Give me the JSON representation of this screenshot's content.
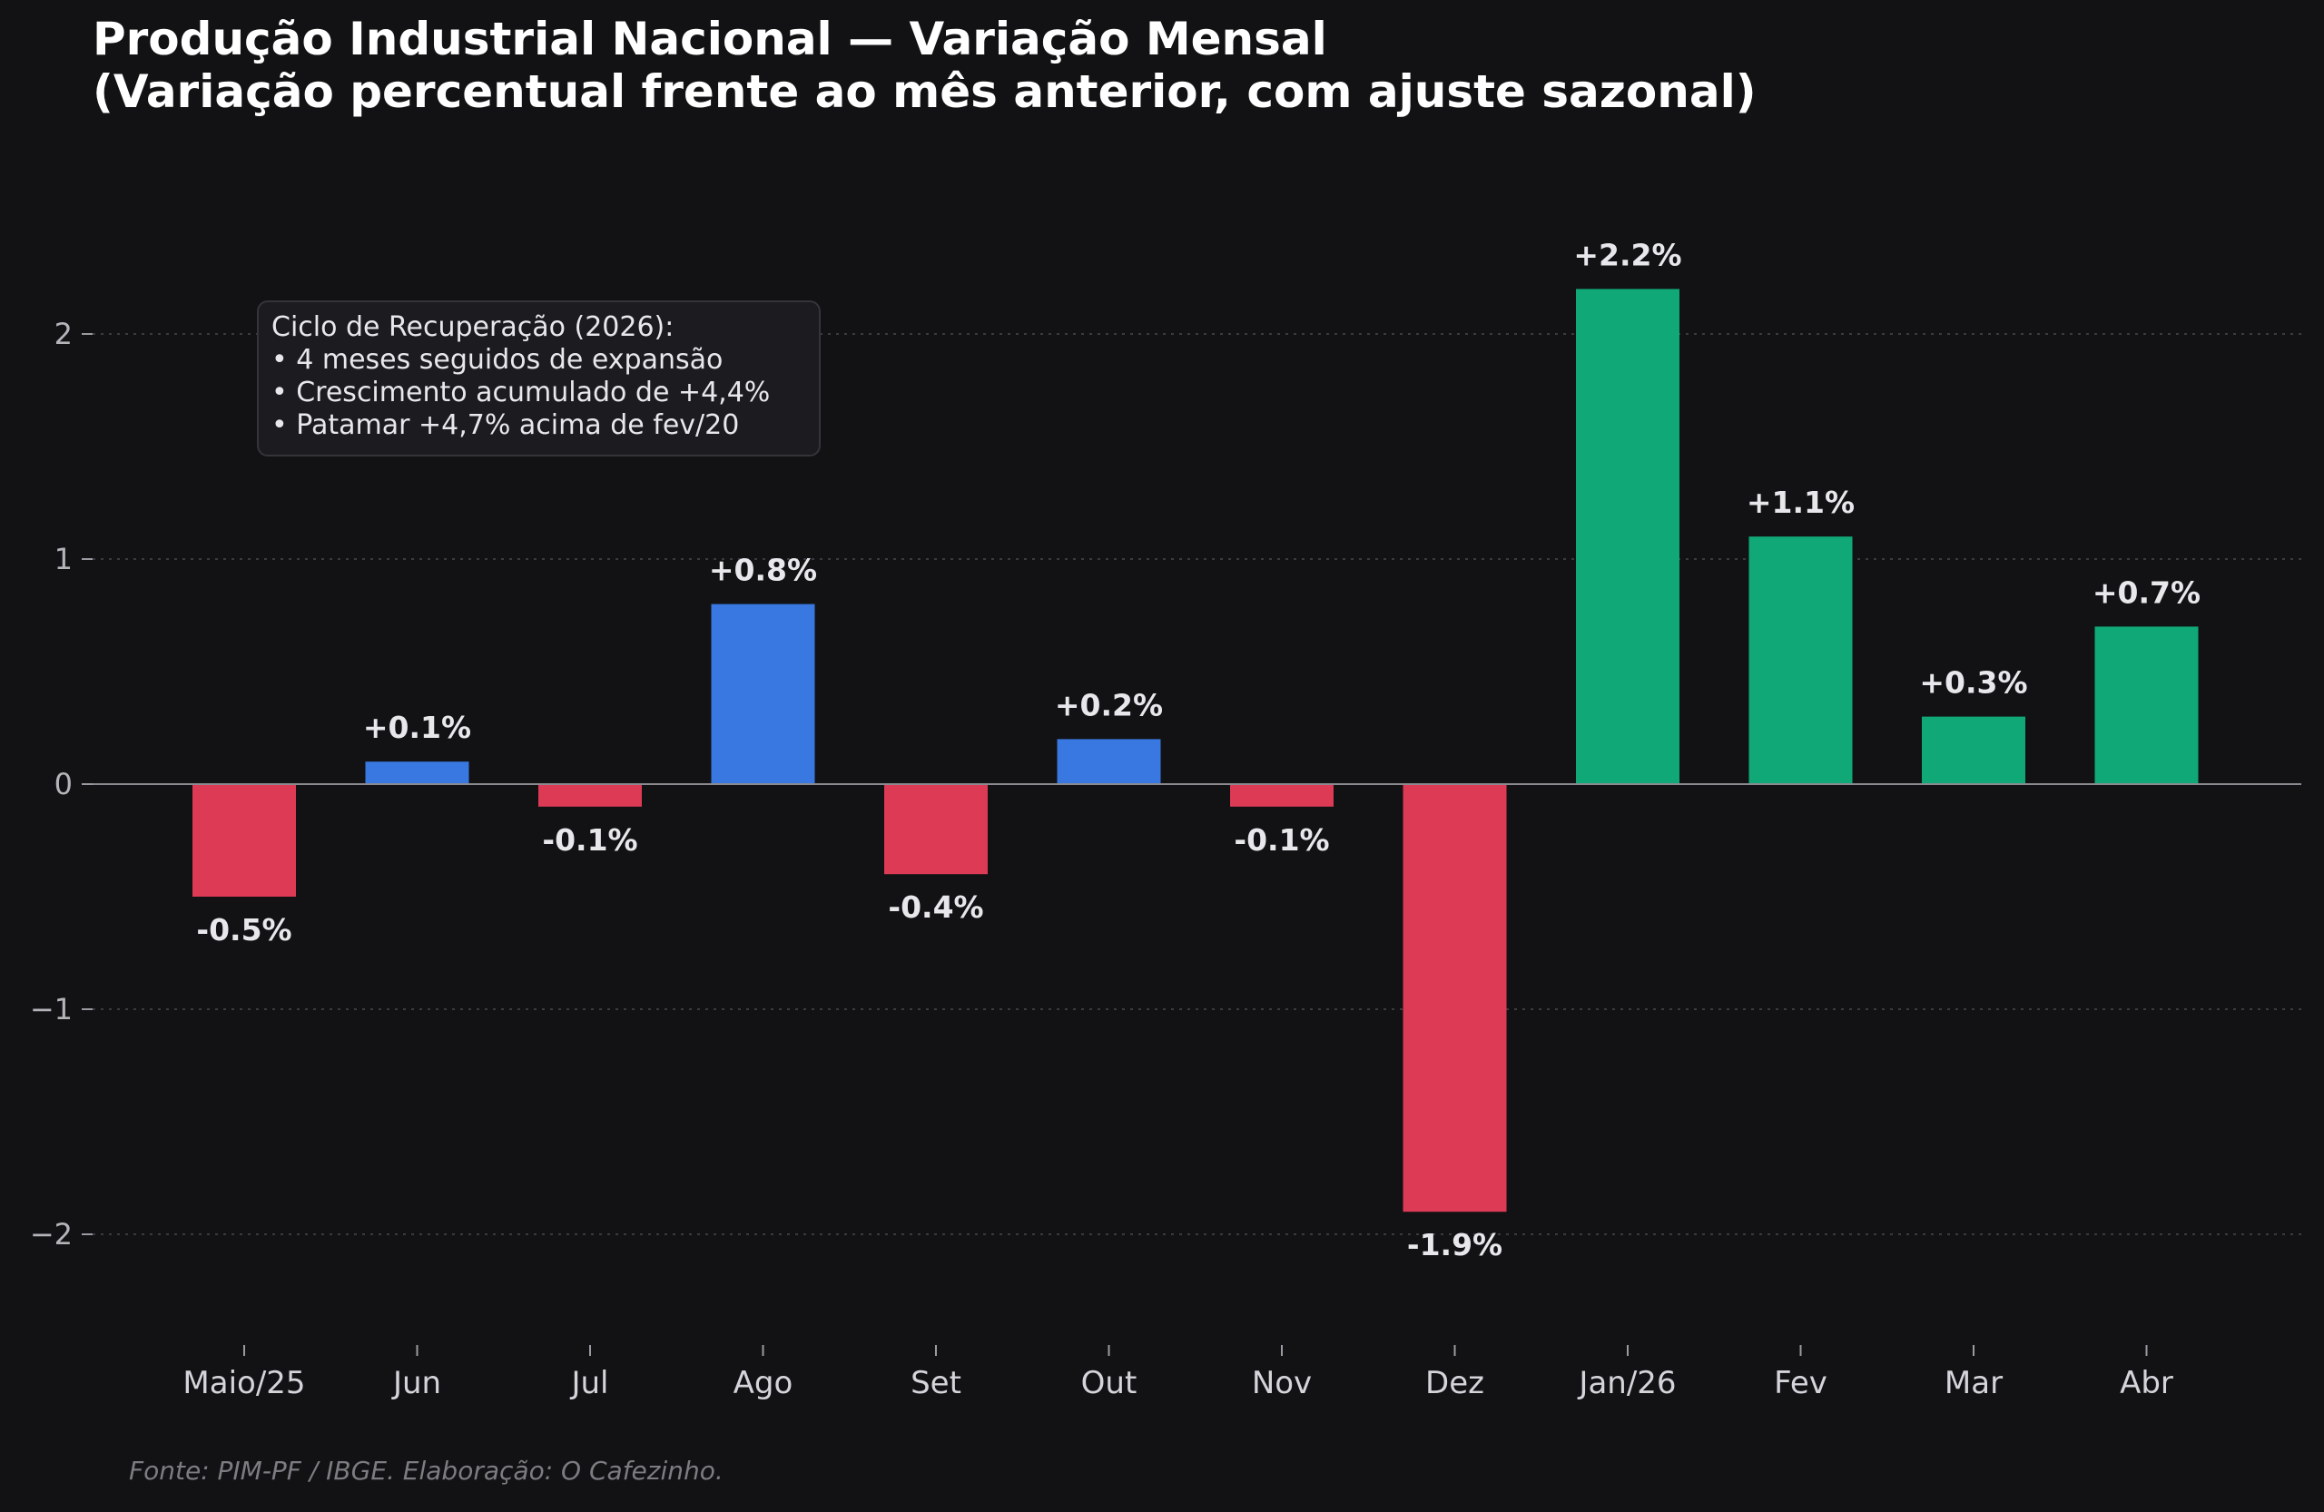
{
  "chart_data": {
    "type": "bar",
    "title_line1": "Produção Industrial Nacional — Variação Mensal",
    "title_line2": "(Variação percentual frente ao mês anterior, com ajuste sazonal)",
    "categories": [
      "Maio/25",
      "Jun",
      "Jul",
      "Ago",
      "Set",
      "Out",
      "Nov",
      "Dez",
      "Jan/26",
      "Fev",
      "Mar",
      "Abr"
    ],
    "values": [
      -0.5,
      0.1,
      -0.1,
      0.8,
      -0.4,
      0.2,
      -0.1,
      -1.9,
      2.2,
      1.1,
      0.3,
      0.7
    ],
    "data_labels": [
      "-0.5%",
      "+0.1%",
      "-0.1%",
      "+0.8%",
      "-0.4%",
      "+0.2%",
      "-0.1%",
      "-1.9%",
      "+2.2%",
      "+1.1%",
      "+0.3%",
      "+0.7%"
    ],
    "bar_colors": [
      "#dc3a55",
      "#3878e0",
      "#dc3a55",
      "#3878e0",
      "#dc3a55",
      "#3878e0",
      "#dc3a55",
      "#dc3a55",
      "#10a877",
      "#10a877",
      "#10a877",
      "#10a877"
    ],
    "yticks": [
      2,
      1,
      0,
      -1,
      -2
    ],
    "ytick_labels": [
      "2",
      "1",
      "0",
      "−1",
      "−2"
    ],
    "ylim": [
      -2.5,
      2.5
    ],
    "grid": true,
    "annotation": {
      "title": "Ciclo de Recuperação (2026):",
      "lines": [
        "• 4 meses seguidos de expansão",
        "• Crescimento acumulado de +4,4%",
        "• Patamar +4,7% acima de fev/20"
      ]
    },
    "source": "Fonte: PIM-PF / IBGE. Elaboração: O Cafezinho."
  }
}
